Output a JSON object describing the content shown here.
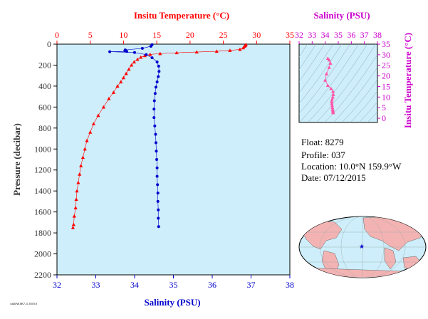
{
  "chart_data": [
    {
      "type": "scatter",
      "top_axis": {
        "label": "Insitu Temperature (°C)",
        "range": [
          0,
          35
        ],
        "ticks": [
          "0",
          "5",
          "10",
          "15",
          "20",
          "25",
          "30",
          "35"
        ],
        "color": "#ff0000"
      },
      "bottom_axis": {
        "label": "Salinity (PSU)",
        "range": [
          32,
          38
        ],
        "ticks": [
          "32",
          "33",
          "34",
          "35",
          "36",
          "37",
          "38"
        ],
        "color": "#0000cc"
      },
      "y_axis": {
        "label": "Pressure (decibar)",
        "range": [
          0,
          2200
        ],
        "inverted": true,
        "ticks": [
          "0",
          "200",
          "400",
          "600",
          "800",
          "1000",
          "1200",
          "1400",
          "1600",
          "1800",
          "2000",
          "2200"
        ],
        "color": "#333333"
      },
      "background": "#cdeefa",
      "series": [
        {
          "axis": "top",
          "marker": "triangle",
          "color": "#ff0000",
          "points": [
            [
              28.4,
              5
            ],
            [
              28.3,
              12
            ],
            [
              28.2,
              20
            ],
            [
              28.0,
              35
            ],
            [
              27.5,
              50
            ],
            [
              26.0,
              60
            ],
            [
              24.0,
              68
            ],
            [
              21.0,
              75
            ],
            [
              18.0,
              82
            ],
            [
              15.5,
              90
            ],
            [
              14.0,
              98
            ],
            [
              13.2,
              110
            ],
            [
              12.6,
              125
            ],
            [
              12.1,
              145
            ],
            [
              11.6,
              170
            ],
            [
              11.2,
              200
            ],
            [
              10.8,
              240
            ],
            [
              10.4,
              280
            ],
            [
              10.0,
              320
            ],
            [
              9.6,
              360
            ],
            [
              9.1,
              400
            ],
            [
              8.5,
              460
            ],
            [
              7.8,
              520
            ],
            [
              7.0,
              600
            ],
            [
              6.2,
              680
            ],
            [
              5.5,
              760
            ],
            [
              5.0,
              840
            ],
            [
              4.5,
              920
            ],
            [
              4.2,
              1000
            ],
            [
              3.9,
              1080
            ],
            [
              3.6,
              1160
            ],
            [
              3.4,
              1240
            ],
            [
              3.2,
              1320
            ],
            [
              3.0,
              1400
            ],
            [
              2.9,
              1480
            ],
            [
              2.8,
              1560
            ],
            [
              2.6,
              1640
            ],
            [
              2.5,
              1720
            ],
            [
              2.4,
              1750
            ]
          ]
        },
        {
          "axis": "bottom",
          "marker": "dot",
          "color": "#0000cc",
          "points": [
            [
              34.45,
              5
            ],
            [
              34.42,
              20
            ],
            [
              34.2,
              40
            ],
            [
              33.76,
              55
            ],
            [
              33.75,
              62
            ],
            [
              33.8,
              70
            ],
            [
              33.36,
              72
            ],
            [
              34.0,
              80
            ],
            [
              34.3,
              100
            ],
            [
              34.45,
              130
            ],
            [
              34.58,
              170
            ],
            [
              34.62,
              210
            ],
            [
              34.63,
              260
            ],
            [
              34.61,
              310
            ],
            [
              34.58,
              360
            ],
            [
              34.55,
              410
            ],
            [
              34.53,
              470
            ],
            [
              34.51,
              540
            ],
            [
              34.5,
              620
            ],
            [
              34.5,
              700
            ],
            [
              34.52,
              780
            ],
            [
              34.54,
              860
            ],
            [
              34.55,
              940
            ],
            [
              34.56,
              1020
            ],
            [
              34.57,
              1100
            ],
            [
              34.58,
              1180
            ],
            [
              34.58,
              1260
            ],
            [
              34.59,
              1340
            ],
            [
              34.6,
              1420
            ],
            [
              34.6,
              1500
            ],
            [
              34.61,
              1580
            ],
            [
              34.61,
              1660
            ],
            [
              34.62,
              1740
            ]
          ]
        }
      ]
    },
    {
      "type": "scatter",
      "x_axis": {
        "label": "Salinity (PSU)",
        "range": [
          32,
          38
        ],
        "ticks": [
          "32",
          "33",
          "34",
          "35",
          "36",
          "37",
          "38"
        ],
        "position": "top",
        "color": "#cc00cc"
      },
      "y_axis": {
        "label": "Insitu Temperature (°C)",
        "range": [
          -2,
          35
        ],
        "ticks": [
          "0",
          "5",
          "10",
          "15",
          "20",
          "25",
          "30",
          "35"
        ],
        "position": "right",
        "color": "#cc00cc"
      },
      "background": "#cdeefa",
      "series": [
        {
          "marker": "triangle",
          "color": "#ff55aa",
          "points": [
            [
              34.2,
              28.3
            ],
            [
              34.3,
              27.5
            ],
            [
              34.4,
              26.0
            ],
            [
              34.3,
              24.0
            ],
            [
              34.1,
              21.0
            ],
            [
              34.0,
              18.0
            ],
            [
              34.2,
              15.5
            ],
            [
              34.45,
              14.0
            ],
            [
              34.6,
              12.6
            ],
            [
              34.62,
              11.2
            ],
            [
              34.58,
              10.0
            ],
            [
              34.53,
              9.0
            ],
            [
              34.5,
              8.0
            ],
            [
              34.5,
              7.0
            ],
            [
              34.53,
              6.0
            ],
            [
              34.55,
              5.0
            ],
            [
              34.57,
              4.2
            ],
            [
              34.59,
              3.6
            ],
            [
              34.6,
              3.0
            ],
            [
              34.61,
              2.6
            ]
          ]
        }
      ]
    }
  ],
  "info": {
    "float": "Float:  8279",
    "profile": "Profile:  037",
    "location": "Location:  10.0°N  159.9°W",
    "date": "Date:  07/12/2015"
  },
  "footer": "Ark0A8.8K7,11.0.0.0.0"
}
